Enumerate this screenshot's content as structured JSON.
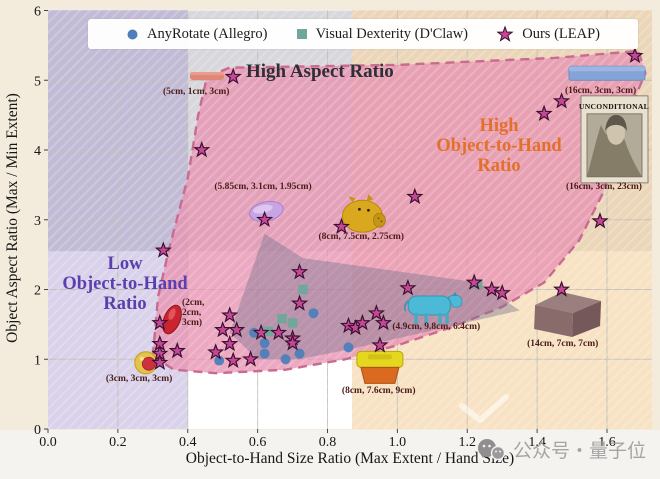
{
  "legend": {
    "items": [
      {
        "label": "AnyRotate (Allegro)",
        "marker": "circle",
        "color": "#4e7fba"
      },
      {
        "label": "Visual Dexterity (D'Claw)",
        "marker": "square",
        "color": "#6fa89a"
      },
      {
        "label": "Ours (LEAP)",
        "marker": "star",
        "color": "#c64795"
      }
    ]
  },
  "axes": {
    "x_label": "Object-to-Hand Size Ratio (Max Extent / Hand Size)",
    "y_label": "Object Aspect Ratio (Max / Min Extent)",
    "x_ticks": [
      "0.0",
      "0.2",
      "0.4",
      "0.6",
      "0.8",
      "1.0",
      "1.2",
      "1.4",
      "1.6"
    ],
    "y_ticks": [
      "0",
      "1",
      "2",
      "3",
      "4",
      "5",
      "6"
    ]
  },
  "regions": [
    {
      "name": "high-aspect-ratio",
      "label": "High Aspect Ratio",
      "color": "#2e2e36",
      "band_color": "#bebcc4"
    },
    {
      "name": "high-object-to-hand-ratio",
      "label": "High Object-to-Hand Ratio",
      "lines": [
        "High",
        "Object-to-Hand",
        "Ratio"
      ],
      "color": "#e2702a",
      "band_color": "#f3d6aa"
    },
    {
      "name": "low-object-to-hand-ratio",
      "label": "Low Object-to-Hand Ratio",
      "lines": [
        "Low",
        "Object-to-Hand",
        "Ratio"
      ],
      "color": "#5b3fae",
      "band_color": "#a594cd"
    }
  ],
  "chart_data": {
    "type": "scatter",
    "xlabel": "Object-to-Hand Size Ratio (Max Extent / Hand Size)",
    "ylabel": "Object Aspect Ratio (Max / Min Extent)",
    "xlim": [
      0,
      1.73
    ],
    "ylim": [
      0,
      6
    ],
    "x_tick_values": [
      0.0,
      0.2,
      0.4,
      0.6,
      0.8,
      1.0,
      1.2,
      1.4,
      1.6
    ],
    "y_tick_values": [
      0,
      1,
      2,
      3,
      4,
      5,
      6
    ],
    "grid": true,
    "legend_position": "top",
    "series": [
      {
        "name": "AnyRotate (Allegro)",
        "marker": "circle",
        "color": "#4e7fba",
        "points": [
          [
            0.76,
            1.66
          ],
          [
            0.59,
            1.38
          ],
          [
            0.62,
            1.23
          ],
          [
            0.62,
            1.08
          ],
          [
            0.68,
            1.0
          ],
          [
            0.72,
            1.08
          ],
          [
            0.86,
            1.17
          ],
          [
            0.49,
            0.98
          ]
        ]
      },
      {
        "name": "Visual Dexterity (D'Claw)",
        "marker": "square",
        "color": "#6fa89a",
        "points": [
          [
            0.73,
            2.0
          ],
          [
            0.67,
            1.58
          ],
          [
            0.7,
            1.52
          ],
          [
            0.63,
            1.4
          ],
          [
            1.23,
            2.08
          ]
        ]
      },
      {
        "name": "Ours (LEAP)",
        "marker": "star",
        "color": "#c64795",
        "points": [
          [
            0.53,
            5.05
          ],
          [
            1.68,
            5.35
          ],
          [
            1.47,
            4.7
          ],
          [
            1.42,
            4.52
          ],
          [
            0.44,
            4.0
          ],
          [
            1.05,
            3.33
          ],
          [
            0.62,
            3.0
          ],
          [
            1.58,
            2.98
          ],
          [
            0.84,
            2.9
          ],
          [
            0.33,
            2.56
          ],
          [
            0.72,
            2.25
          ],
          [
            1.22,
            2.1
          ],
          [
            1.27,
            2.0
          ],
          [
            1.3,
            1.95
          ],
          [
            1.47,
            2.0
          ],
          [
            0.72,
            1.8
          ],
          [
            0.52,
            1.63
          ],
          [
            0.32,
            1.52
          ],
          [
            0.5,
            1.42
          ],
          [
            0.54,
            1.42
          ],
          [
            0.61,
            1.38
          ],
          [
            0.66,
            1.38
          ],
          [
            0.7,
            1.3
          ],
          [
            0.32,
            1.22
          ],
          [
            0.52,
            1.22
          ],
          [
            0.7,
            1.23
          ],
          [
            0.37,
            1.12
          ],
          [
            0.48,
            1.1
          ],
          [
            0.32,
            1.08
          ],
          [
            0.32,
            0.95
          ],
          [
            0.53,
            0.98
          ],
          [
            0.58,
            1.0
          ],
          [
            0.86,
            1.48
          ],
          [
            0.88,
            1.45
          ],
          [
            0.9,
            1.52
          ],
          [
            0.94,
            1.66
          ],
          [
            0.96,
            1.52
          ],
          [
            1.03,
            2.02
          ],
          [
            0.95,
            1.2
          ]
        ]
      }
    ],
    "region_bands": {
      "low_object_to_hand": {
        "axis": "x",
        "range": [
          0,
          0.4
        ]
      },
      "high_aspect": {
        "axis": "y",
        "range": [
          2.55,
          6
        ]
      },
      "high_object_to_hand": {
        "axis": "x",
        "range": [
          0.87,
          1.73
        ]
      }
    },
    "hulls": {
      "ours": [
        [
          0.3,
          1.05
        ],
        [
          0.315,
          1.9
        ],
        [
          0.345,
          2.55
        ],
        [
          0.4,
          3.6
        ],
        [
          0.43,
          4.5
        ],
        [
          0.455,
          5.05
        ],
        [
          0.52,
          5.18
        ],
        [
          1.0,
          5.22
        ],
        [
          1.45,
          5.32
        ],
        [
          1.69,
          5.42
        ],
        [
          1.71,
          5.1
        ],
        [
          1.64,
          4.3
        ],
        [
          1.59,
          3.4
        ],
        [
          1.52,
          2.7
        ],
        [
          1.42,
          2.1
        ],
        [
          1.3,
          1.75
        ],
        [
          1.15,
          1.45
        ],
        [
          1.0,
          1.2
        ],
        [
          0.85,
          1.0
        ],
        [
          0.68,
          0.85
        ],
        [
          0.48,
          0.8
        ],
        [
          0.36,
          0.85
        ]
      ],
      "baselines": [
        [
          0.62,
          2.8
        ],
        [
          0.73,
          2.45
        ],
        [
          1.23,
          2.1
        ],
        [
          1.35,
          1.7
        ],
        [
          0.87,
          1.15
        ],
        [
          0.72,
          1.0
        ],
        [
          0.6,
          1.0
        ],
        [
          0.52,
          1.38
        ]
      ]
    },
    "object_annotations": [
      {
        "name": "stick",
        "label": "(5cm, 1cm, 3cm)",
        "x": 0.455,
        "y": 5.06
      },
      {
        "name": "long-bar",
        "label": "(16cm, 3cm, 3cm)",
        "x": 1.6,
        "y": 5.1
      },
      {
        "name": "book",
        "label": "(16cm, 3cm, 23cm)",
        "x": 1.62,
        "y": 4.16
      },
      {
        "name": "soap",
        "label": "(5.85cm, 3.1cm, 1.95cm)",
        "x": 0.625,
        "y": 3.12
      },
      {
        "name": "piggy",
        "label": "(8cm, 7.5cm, 2.75cm)",
        "x": 0.9,
        "y": 3.05
      },
      {
        "name": "pepper",
        "label": "(2cm, 2cm, 3cm)",
        "x": 0.355,
        "y": 1.57
      },
      {
        "name": "onion",
        "label": "(3cm, 3cm, 3cm)",
        "x": 0.28,
        "y": 0.95
      },
      {
        "name": "cow",
        "label": "(4.9cm, 9.8cm, 6.4cm)",
        "x": 1.1,
        "y": 1.72
      },
      {
        "name": "basket",
        "label": "(8cm, 7.6cm, 9cm)",
        "x": 0.95,
        "y": 0.87
      },
      {
        "name": "box",
        "label": "(14cm, 7cm, 7cm)",
        "x": 1.48,
        "y": 1.62
      }
    ],
    "book_title": "UNCONDITIONAL",
    "hull_colors": {
      "ours": "#e794b1",
      "ours_border": "#c96a92",
      "baselines": "#78738c"
    }
  },
  "watermark": {
    "text": "公众号・量子位"
  }
}
